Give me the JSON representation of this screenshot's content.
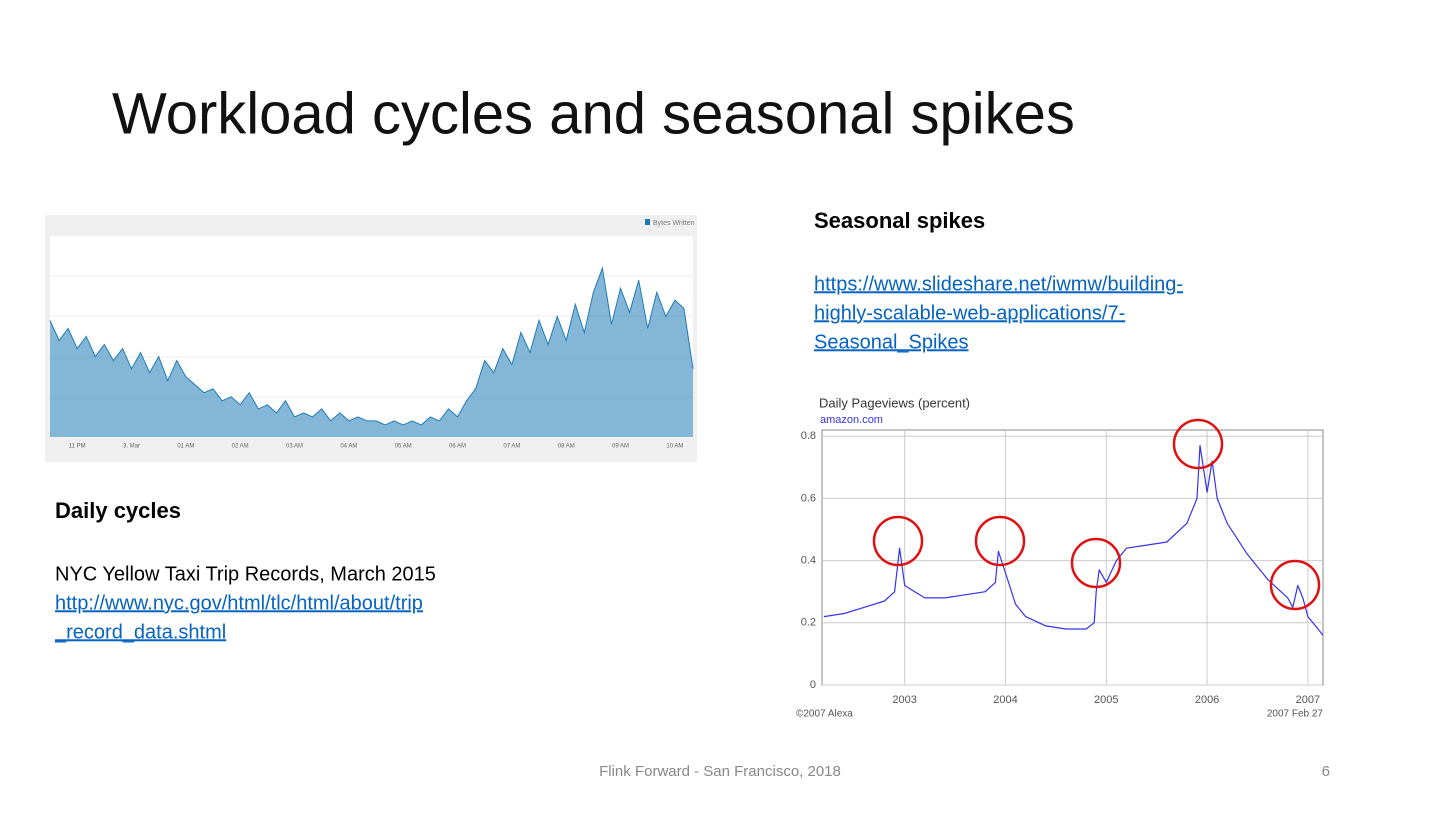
{
  "slide": {
    "title": "Workload cycles and seasonal spikes",
    "footer": "Flink Forward - San Francisco, 2018",
    "page_number": 6
  },
  "daily": {
    "heading": "Daily cycles",
    "caption": "NYC Yellow Taxi Trip Records, March 2015",
    "link_lines": [
      "http://www.nyc.gov/html/tlc/html/about/trip",
      "_record_data.shtml"
    ]
  },
  "seasonal": {
    "heading": "Seasonal spikes",
    "link_lines": [
      "https://www.slideshare.net/iwmw/building-",
      "highly-scalable-web-applications/7-",
      "Seasonal_Spikes"
    ]
  },
  "chart_data": [
    {
      "type": "area",
      "categories": [
        null,
        null,
        null,
        "11 PM",
        null,
        null,
        null,
        null,
        null,
        "3. Mar",
        null,
        null,
        null,
        null,
        null,
        "01 AM",
        null,
        null,
        null,
        null,
        null,
        "02 AM",
        null,
        null,
        null,
        null,
        null,
        "03 AM",
        null,
        null,
        null,
        null,
        null,
        "04 AM",
        null,
        null,
        null,
        null,
        null,
        "05 AM",
        null,
        null,
        null,
        null,
        null,
        "06 AM",
        null,
        null,
        null,
        null,
        null,
        "07 AM",
        null,
        null,
        null,
        null,
        null,
        "08 AM",
        null,
        null,
        null,
        null,
        null,
        "09 AM",
        null,
        null,
        null,
        null,
        null,
        "10 AM",
        null,
        null
      ],
      "series": [
        {
          "name": "Bytes Written",
          "color": "#1f7bb6",
          "values": [
            2.9,
            2.4,
            2.7,
            2.2,
            2.5,
            2.0,
            2.3,
            1.9,
            2.2,
            1.7,
            2.1,
            1.6,
            2.0,
            1.4,
            1.9,
            1.5,
            1.3,
            1.1,
            1.2,
            0.9,
            1.0,
            0.8,
            1.1,
            0.7,
            0.8,
            0.6,
            0.9,
            0.5,
            0.6,
            0.5,
            0.7,
            0.4,
            0.6,
            0.4,
            0.5,
            0.4,
            0.4,
            0.3,
            0.4,
            0.3,
            0.4,
            0.3,
            0.5,
            0.4,
            0.7,
            0.5,
            0.9,
            1.2,
            1.9,
            1.6,
            2.2,
            1.8,
            2.6,
            2.1,
            2.9,
            2.3,
            3.0,
            2.4,
            3.3,
            2.6,
            3.6,
            4.2,
            2.8,
            3.7,
            3.1,
            3.9,
            2.7,
            3.6,
            3.0,
            3.4,
            3.2,
            1.7
          ]
        }
      ],
      "ylim": [
        0,
        5
      ]
    },
    {
      "type": "line",
      "title": "Daily Pageviews (percent)",
      "subtitle": "amazon.com",
      "color": "#3333ee",
      "x": [
        2002.2,
        2002.4,
        2002.6,
        2002.8,
        2002.9,
        2002.95,
        2003.0,
        2003.1,
        2003.2,
        2003.4,
        2003.6,
        2003.8,
        2003.9,
        2003.93,
        2004.0,
        2004.1,
        2004.2,
        2004.4,
        2004.6,
        2004.8,
        2004.88,
        2004.9,
        2004.93,
        2005.0,
        2005.1,
        2005.2,
        2005.4,
        2005.6,
        2005.8,
        2005.9,
        2005.93,
        2006.0,
        2006.05,
        2006.1,
        2006.2,
        2006.4,
        2006.6,
        2006.8,
        2006.85,
        2006.9,
        2006.95,
        2007.0,
        2007.1,
        2007.15
      ],
      "values": [
        0.22,
        0.23,
        0.25,
        0.27,
        0.3,
        0.44,
        0.32,
        0.3,
        0.28,
        0.28,
        0.29,
        0.3,
        0.33,
        0.43,
        0.36,
        0.26,
        0.22,
        0.19,
        0.18,
        0.18,
        0.2,
        0.3,
        0.37,
        0.33,
        0.4,
        0.44,
        0.45,
        0.46,
        0.52,
        0.6,
        0.77,
        0.62,
        0.72,
        0.6,
        0.52,
        0.42,
        0.34,
        0.28,
        0.25,
        0.32,
        0.28,
        0.22,
        0.18,
        0.16
      ],
      "xlim": [
        2002.18,
        2007.15
      ],
      "xticks": [
        2003,
        2004,
        2005,
        2006,
        2007
      ],
      "ylim": [
        0,
        0.82
      ],
      "yticks": [
        0,
        0.2,
        0.4,
        0.6,
        0.8
      ],
      "grid": true,
      "annotations": [
        "©2007 Alexa",
        "2007 Feb 27"
      ]
    }
  ]
}
